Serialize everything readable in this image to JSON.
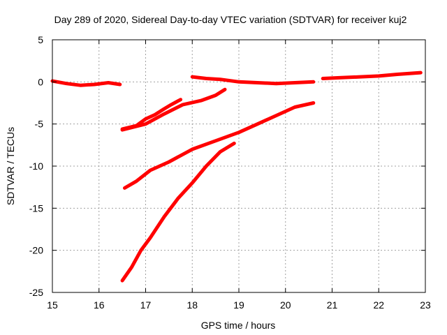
{
  "chart_data": {
    "type": "line",
    "title": "Day 289 of 2020, Sidereal Day-to-day VTEC variation (SDTVAR) for receiver kuj2",
    "xlabel": "GPS time / hours",
    "ylabel": "SDTVAR / TECUs",
    "xlim": [
      15,
      23
    ],
    "ylim": [
      -25,
      5
    ],
    "xticks": [
      "15",
      "16",
      "17",
      "18",
      "19",
      "20",
      "21",
      "22",
      "23"
    ],
    "yticks": [
      "5",
      "0",
      "-5",
      "-10",
      "-15",
      "-20",
      "-25"
    ],
    "grid": true,
    "legend": false,
    "color": "#ff0000",
    "series": [
      {
        "name": "trace-a",
        "x": [
          15.0,
          15.3,
          15.6,
          15.9,
          16.2,
          16.45
        ],
        "y": [
          0.1,
          -0.2,
          -0.4,
          -0.3,
          -0.1,
          -0.3
        ]
      },
      {
        "name": "trace-b",
        "x": [
          18.0,
          18.3,
          18.6,
          19.0,
          19.4,
          19.8,
          20.2,
          20.6
        ],
        "y": [
          0.6,
          0.4,
          0.3,
          0.0,
          -0.1,
          -0.2,
          -0.1,
          0.0
        ]
      },
      {
        "name": "trace-c",
        "x": [
          20.8,
          21.2,
          21.6,
          22.0,
          22.4,
          22.9
        ],
        "y": [
          0.4,
          0.5,
          0.6,
          0.7,
          0.9,
          1.1
        ]
      },
      {
        "name": "trace-d",
        "x": [
          16.5,
          16.8,
          17.0,
          17.2,
          17.4,
          17.55,
          17.75
        ],
        "y": [
          -5.6,
          -5.2,
          -4.4,
          -3.9,
          -3.2,
          -2.7,
          -2.1
        ]
      },
      {
        "name": "trace-e",
        "x": [
          16.5,
          17.0,
          17.4,
          17.8,
          18.2,
          18.5,
          18.7
        ],
        "y": [
          -5.7,
          -5.0,
          -3.8,
          -2.7,
          -2.2,
          -1.6,
          -0.9
        ]
      },
      {
        "name": "trace-f",
        "x": [
          16.55,
          16.8,
          17.1,
          17.5,
          18.0,
          18.5,
          19.0,
          19.4,
          19.8,
          20.2,
          20.6
        ],
        "y": [
          -12.6,
          -11.8,
          -10.5,
          -9.5,
          -8.0,
          -7.0,
          -6.0,
          -5.0,
          -4.0,
          -3.0,
          -2.5
        ]
      },
      {
        "name": "trace-g",
        "x": [
          16.5,
          16.7,
          16.9,
          17.1,
          17.4,
          17.7,
          18.0,
          18.3,
          18.6,
          18.9
        ],
        "y": [
          -23.6,
          -22.0,
          -20.0,
          -18.5,
          -16.0,
          -13.8,
          -12.0,
          -10.0,
          -8.3,
          -7.3
        ]
      }
    ]
  }
}
